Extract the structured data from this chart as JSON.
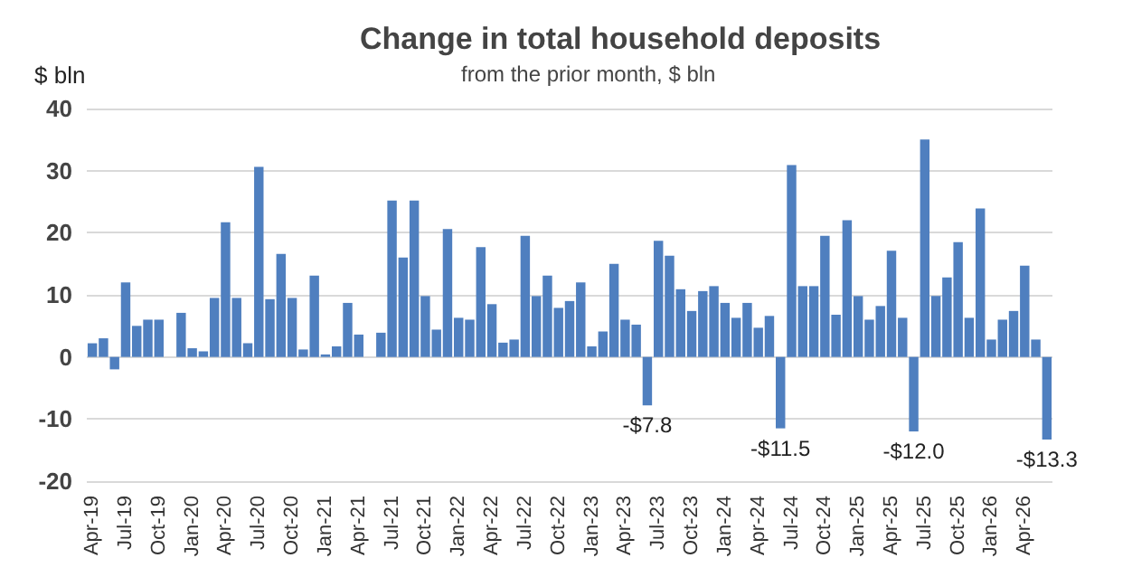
{
  "chart_data": {
    "type": "bar",
    "title": "Change in total household deposits",
    "subtitle": "from the prior month, $ bln",
    "ylabel": "$ bln",
    "categories": [
      "Apr-19",
      null,
      null,
      "Jul-19",
      null,
      null,
      "Oct-19",
      null,
      null,
      "Jan-20",
      null,
      null,
      "Apr-20",
      null,
      null,
      "Jul-20",
      null,
      null,
      "Oct-20",
      null,
      null,
      "Jan-21",
      null,
      null,
      "Apr-21",
      null,
      null,
      "Jul-21",
      null,
      null,
      "Oct-21",
      null,
      null,
      "Jan-22",
      null,
      null,
      "Apr-22",
      null,
      null,
      "Jul-22",
      null,
      null,
      "Oct-22",
      null,
      null,
      "Jan-23",
      null,
      null,
      "Apr-23",
      null,
      null,
      "Jul-23",
      null,
      null,
      "Oct-23",
      null,
      null,
      "Jan-24",
      null,
      null,
      "Apr-24",
      null,
      null,
      "Jul-24",
      null,
      null,
      "Oct-24",
      null,
      null,
      "Jan-25",
      null,
      null,
      "Apr-25",
      null,
      null,
      "Jul-25",
      null,
      null,
      "Oct-25",
      null,
      null,
      "Jan-26",
      null,
      null,
      "Apr-26",
      null,
      null
    ],
    "values": [
      2.2,
      3.0,
      -2.0,
      12.0,
      5.0,
      6.0,
      6.0,
      0,
      7.1,
      1.4,
      0.9,
      9.5,
      21.7,
      9.5,
      2.2,
      30.6,
      9.3,
      16.6,
      9.5,
      1.2,
      13.1,
      0.4,
      1.7,
      8.7,
      3.6,
      0,
      3.9,
      25.2,
      16.0,
      25.2,
      9.8,
      4.4,
      20.6,
      6.3,
      6.0,
      17.7,
      8.5,
      2.3,
      2.8,
      19.5,
      9.8,
      13.1,
      7.9,
      9.0,
      12.0,
      1.7,
      4.1,
      15.0,
      6.0,
      5.2,
      -7.8,
      18.7,
      16.3,
      10.9,
      7.4,
      10.6,
      11.4,
      8.7,
      6.3,
      8.7,
      4.7,
      6.6,
      -11.5,
      30.9,
      11.4,
      11.4,
      19.5,
      6.8,
      22.0,
      9.8,
      6.0,
      8.2,
      17.1,
      6.3,
      -12.0,
      35.0,
      9.8,
      12.8,
      18.5,
      6.3,
      23.9,
      2.8,
      6.0,
      7.4,
      14.7,
      2.8,
      -13.3
    ],
    "value_labels": [
      null,
      null,
      null,
      null,
      null,
      null,
      null,
      null,
      null,
      null,
      null,
      null,
      null,
      null,
      null,
      null,
      null,
      null,
      null,
      null,
      null,
      null,
      null,
      null,
      null,
      null,
      null,
      null,
      null,
      null,
      null,
      null,
      null,
      null,
      null,
      null,
      null,
      null,
      null,
      null,
      null,
      null,
      null,
      null,
      null,
      null,
      null,
      null,
      null,
      null,
      "-$7.8",
      null,
      null,
      null,
      null,
      null,
      null,
      null,
      null,
      null,
      null,
      null,
      "-$11.5",
      null,
      null,
      null,
      null,
      null,
      null,
      null,
      null,
      null,
      null,
      null,
      "-$12.0",
      null,
      null,
      null,
      null,
      null,
      null,
      null,
      null,
      null,
      null,
      null,
      "-$13.3"
    ],
    "color": "#4f7fbf",
    "ylim": [
      -20,
      40
    ],
    "yticks": [
      -20,
      -10,
      0,
      10,
      20,
      30,
      40
    ],
    "grid": "y"
  }
}
